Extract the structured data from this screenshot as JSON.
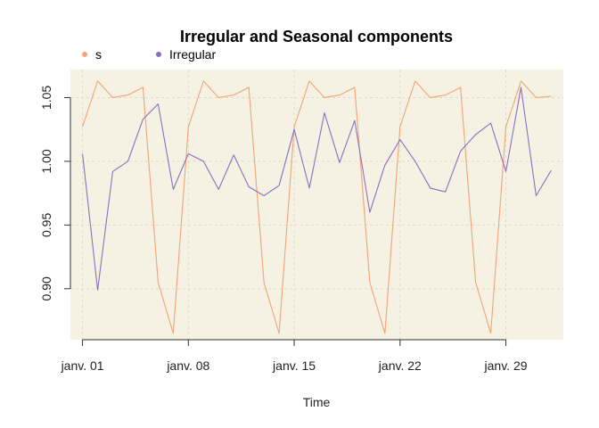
{
  "chart_data": {
    "type": "line",
    "title": "Irregular and Seasonal components",
    "xlabel": "Time",
    "ylabel": "",
    "x": [
      1,
      2,
      3,
      4,
      5,
      6,
      7,
      8,
      9,
      10,
      11,
      12,
      13,
      14,
      15,
      16,
      17,
      18,
      19,
      20,
      21,
      22,
      23,
      24,
      25,
      26,
      27,
      28,
      29,
      30,
      31,
      32
    ],
    "xlim": [
      0.2,
      32.8
    ],
    "ylim": [
      0.86,
      1.072
    ],
    "x_ticks": [
      {
        "x": 1,
        "label": "janv. 01"
      },
      {
        "x": 8,
        "label": "janv. 08"
      },
      {
        "x": 15,
        "label": "janv. 15"
      },
      {
        "x": 22,
        "label": "janv. 22"
      },
      {
        "x": 29,
        "label": "janv. 29"
      }
    ],
    "y_ticks": [
      {
        "y": 0.9,
        "label": "0.90"
      },
      {
        "y": 0.95,
        "label": "0.95"
      },
      {
        "y": 1.0,
        "label": "1.00"
      },
      {
        "y": 1.05,
        "label": "1.05"
      }
    ],
    "grid": true,
    "legend_position": "top-left",
    "background": "#f5f2e3",
    "series": [
      {
        "name": "s",
        "color": "#f4a373",
        "values": [
          1.027,
          1.063,
          1.05,
          1.052,
          1.058,
          0.905,
          0.865,
          1.027,
          1.063,
          1.05,
          1.052,
          1.058,
          0.905,
          0.865,
          1.027,
          1.063,
          1.05,
          1.052,
          1.058,
          0.905,
          0.865,
          1.027,
          1.063,
          1.05,
          1.052,
          1.058,
          0.905,
          0.865,
          1.027,
          1.063,
          1.05,
          1.051
        ]
      },
      {
        "name": "Irregular",
        "color": "#8b6fc0",
        "values": [
          1.006,
          0.899,
          0.992,
          1.0,
          1.033,
          1.045,
          0.978,
          1.006,
          1.0,
          0.978,
          1.005,
          0.98,
          0.973,
          0.981,
          1.025,
          0.979,
          1.038,
          0.999,
          1.032,
          0.96,
          0.997,
          1.017,
          1.0,
          0.979,
          0.976,
          1.008,
          1.021,
          1.03,
          0.992,
          1.058,
          0.973,
          0.993
        ]
      }
    ]
  }
}
